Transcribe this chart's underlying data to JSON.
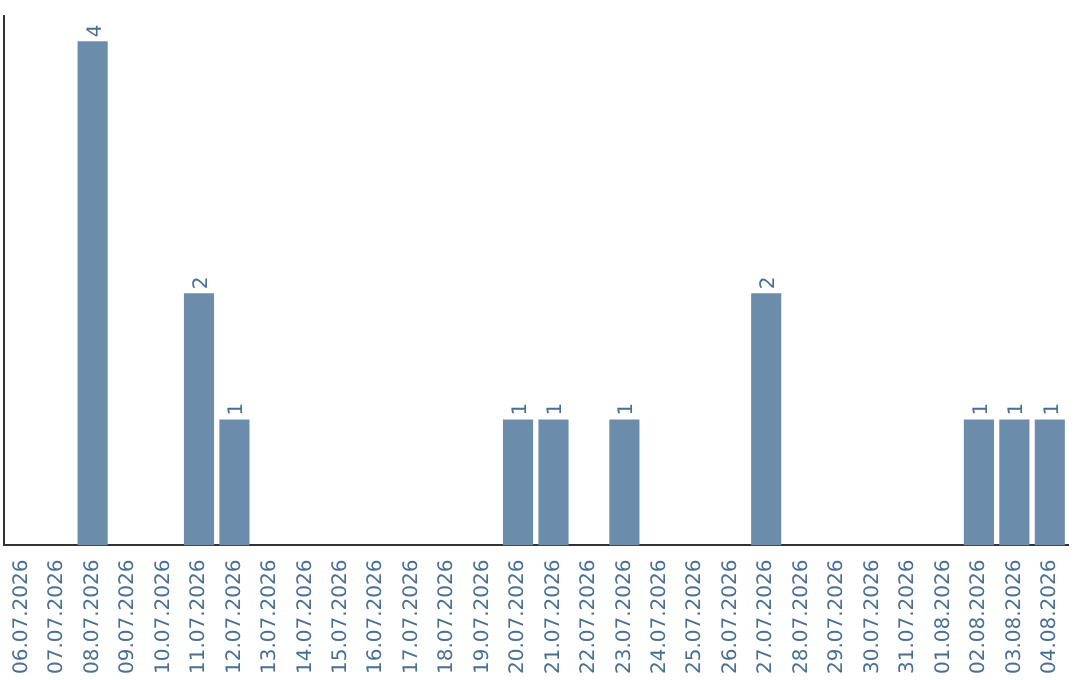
{
  "chart_data": {
    "type": "bar",
    "categories": [
      "06.07.2026",
      "07.07.2026",
      "08.07.2026",
      "09.07.2026",
      "10.07.2026",
      "11.07.2026",
      "12.07.2026",
      "13.07.2026",
      "14.07.2026",
      "15.07.2026",
      "16.07.2026",
      "17.07.2026",
      "18.07.2026",
      "19.07.2026",
      "20.07.2026",
      "21.07.2026",
      "22.07.2026",
      "23.07.2026",
      "24.07.2026",
      "25.07.2026",
      "26.07.2026",
      "27.07.2026",
      "28.07.2026",
      "29.07.2026",
      "30.07.2026",
      "31.07.2026",
      "01.08.2026",
      "02.08.2026",
      "03.08.2026",
      "04.08.2026"
    ],
    "values": [
      0,
      0,
      4,
      0,
      0,
      2,
      1,
      0,
      0,
      0,
      0,
      0,
      0,
      0,
      1,
      1,
      0,
      1,
      0,
      0,
      0,
      2,
      0,
      0,
      0,
      0,
      0,
      1,
      1,
      1
    ],
    "value_labels": [
      null,
      null,
      "4",
      null,
      null,
      "2",
      "1",
      null,
      null,
      null,
      null,
      null,
      null,
      null,
      "1",
      "1",
      null,
      "1",
      null,
      null,
      null,
      "2",
      null,
      null,
      null,
      null,
      null,
      "1",
      "1",
      "1"
    ],
    "color": "#6c8cab",
    "ylim": [
      0,
      4.2
    ],
    "tick_labels": "x",
    "grid": false,
    "legend": false
  }
}
